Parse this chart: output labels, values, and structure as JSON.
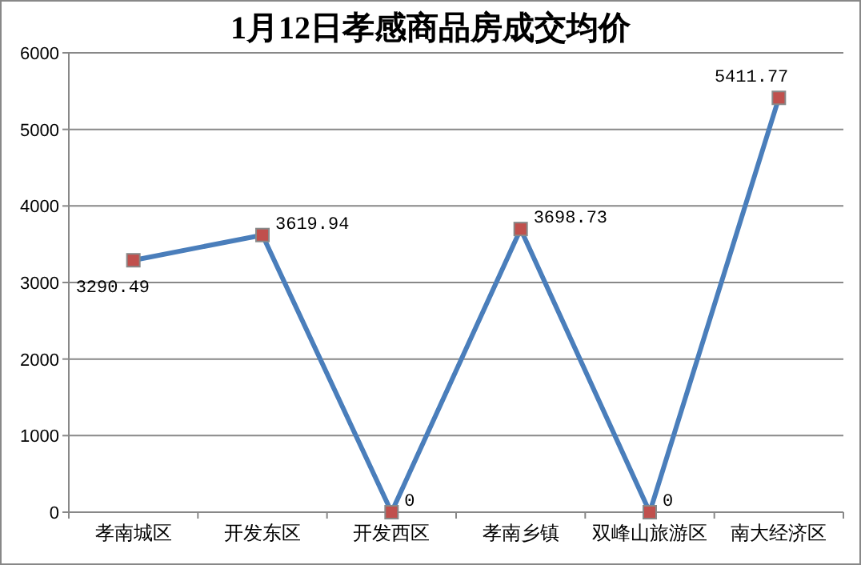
{
  "chart_data": {
    "type": "line",
    "title": "1月12日孝感商品房成交均价",
    "categories": [
      "孝南城区",
      "开发东区",
      "开发西区",
      "孝南乡镇",
      "双峰山旅游区",
      "南大经济区"
    ],
    "series": [
      {
        "color": "#4a7ebb",
        "values": [
          3290.49,
          3619.94,
          0,
          3698.73,
          0,
          5411.77
        ]
      }
    ],
    "ylim": [
      0,
      6000
    ],
    "yticks": [
      0,
      1000,
      2000,
      3000,
      4000,
      5000,
      6000
    ],
    "grid": "y",
    "marker": "square",
    "data_labels": true
  }
}
